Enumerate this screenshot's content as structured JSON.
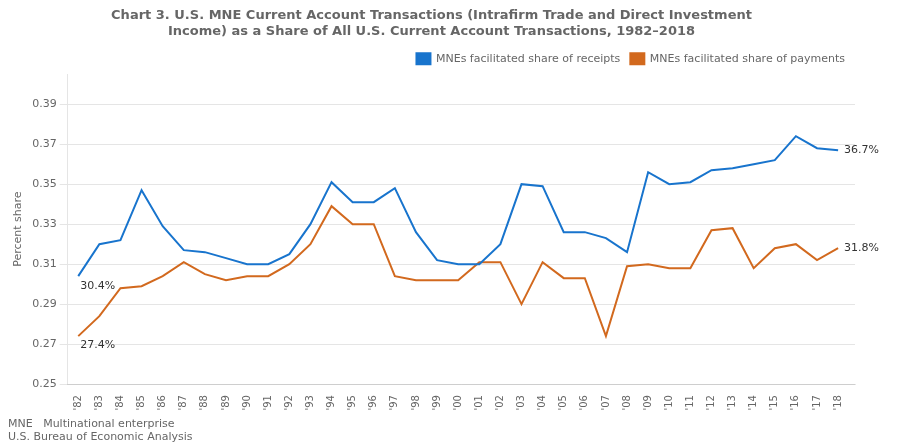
{
  "chart_data": {
    "type": "line",
    "title": [
      "Chart 3. U.S. MNE Current Account Transactions (Intrafirm Trade and Direct Investment",
      "Income) as a Share of All U.S. Current Account Transactions, 1982–2018"
    ],
    "y_label": "Percent share",
    "footnotes": [
      "MNE   Multinational enterprise",
      "U.S. Bureau of Economic Analysis"
    ],
    "x": [
      1982,
      1983,
      1984,
      1985,
      1986,
      1987,
      1988,
      1989,
      1990,
      1991,
      1992,
      1993,
      1994,
      1995,
      1996,
      1997,
      1998,
      1999,
      2000,
      2001,
      2002,
      2003,
      2004,
      2005,
      2006,
      2007,
      2008,
      2009,
      2010,
      2011,
      2012,
      2013,
      2014,
      2015,
      2016,
      2017,
      2018
    ],
    "xlim": [
      1981.5,
      2018.8
    ],
    "xticks": [
      {
        "value": 1982,
        "label": "'82"
      },
      {
        "value": 1983,
        "label": "'83"
      },
      {
        "value": 1984,
        "label": "'84"
      },
      {
        "value": 1985,
        "label": "'85"
      },
      {
        "value": 1986,
        "label": "'86"
      },
      {
        "value": 1987,
        "label": "'87"
      },
      {
        "value": 1988,
        "label": "'88"
      },
      {
        "value": 1989,
        "label": "'89"
      },
      {
        "value": 1990,
        "label": "'90"
      },
      {
        "value": 1991,
        "label": "'91"
      },
      {
        "value": 1992,
        "label": "'92"
      },
      {
        "value": 1993,
        "label": "'93"
      },
      {
        "value": 1994,
        "label": "'94"
      },
      {
        "value": 1995,
        "label": "'95"
      },
      {
        "value": 1996,
        "label": "'96"
      },
      {
        "value": 1997,
        "label": "'97"
      },
      {
        "value": 1998,
        "label": "'98"
      },
      {
        "value": 1999,
        "label": "'99"
      },
      {
        "value": 2000,
        "label": "'00"
      },
      {
        "value": 2001,
        "label": "'01"
      },
      {
        "value": 2002,
        "label": "'02"
      },
      {
        "value": 2003,
        "label": "'03"
      },
      {
        "value": 2004,
        "label": "'04"
      },
      {
        "value": 2005,
        "label": "'05"
      },
      {
        "value": 2006,
        "label": "'06"
      },
      {
        "value": 2007,
        "label": "'07"
      },
      {
        "value": 2008,
        "label": "'08"
      },
      {
        "value": 2009,
        "label": "'09"
      },
      {
        "value": 2010,
        "label": "'10"
      },
      {
        "value": 2011,
        "label": "'11"
      },
      {
        "value": 2012,
        "label": "'12"
      },
      {
        "value": 2013,
        "label": "'13"
      },
      {
        "value": 2014,
        "label": "'14"
      },
      {
        "value": 2015,
        "label": "'15"
      },
      {
        "value": 2016,
        "label": "'16"
      },
      {
        "value": 2017,
        "label": "'17"
      },
      {
        "value": 2018,
        "label": "'18"
      }
    ],
    "ylim": [
      0.25,
      0.405
    ],
    "yticks": [
      0.25,
      0.27,
      0.29,
      0.31,
      0.33,
      0.35,
      0.37,
      0.39
    ],
    "grid": "y",
    "legend": "upper right",
    "series": [
      {
        "name": "MNEs facilitated share of receipts",
        "color": "#1874CD",
        "values": [
          0.304,
          0.32,
          0.322,
          0.347,
          0.329,
          0.317,
          0.316,
          0.313,
          0.31,
          0.31,
          0.315,
          0.33,
          0.351,
          0.341,
          0.341,
          0.348,
          0.326,
          0.312,
          0.31,
          0.31,
          0.32,
          0.35,
          0.349,
          0.326,
          0.326,
          0.323,
          0.316,
          0.356,
          0.35,
          0.351,
          0.357,
          0.358,
          0.36,
          0.362,
          0.374,
          0.368,
          0.367
        ]
      },
      {
        "name": "MNEs facilitated share of payments",
        "color": "#D2691E",
        "values": [
          0.274,
          0.284,
          0.298,
          0.299,
          0.304,
          0.311,
          0.305,
          0.302,
          0.304,
          0.304,
          0.31,
          0.32,
          0.339,
          0.33,
          0.33,
          0.304,
          0.302,
          0.302,
          0.302,
          0.311,
          0.311,
          0.29,
          0.311,
          0.303,
          0.303,
          0.274,
          0.309,
          0.31,
          0.308,
          0.308,
          0.327,
          0.328,
          0.308,
          0.318,
          0.32,
          0.312,
          0.318
        ]
      }
    ],
    "annotations": [
      {
        "text": "30.4%",
        "x": 1982,
        "y": 0.304
      },
      {
        "text": "27.4%",
        "x": 1982,
        "y": 0.274
      },
      {
        "text": "36.7%",
        "x": 2018,
        "y": 0.367
      },
      {
        "text": "31.8%",
        "x": 2018,
        "y": 0.318
      }
    ]
  }
}
